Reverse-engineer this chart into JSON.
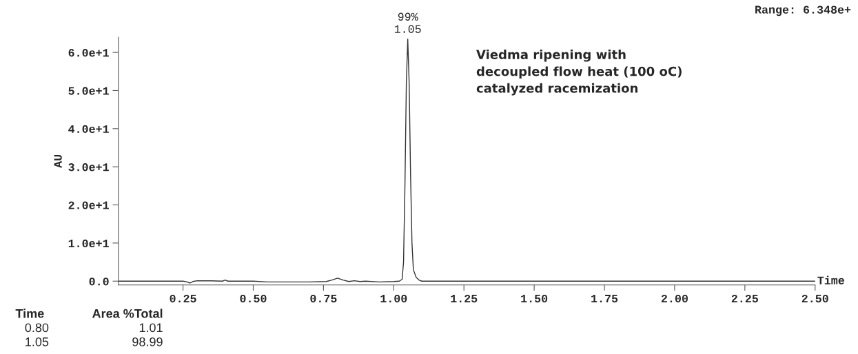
{
  "chart_data": {
    "type": "line",
    "xlabel": "Time",
    "ylabel": "AU",
    "series": [
      {
        "color": "#333333",
        "x": [
          0.02,
          0.1,
          0.2,
          0.25,
          0.265,
          0.275,
          0.285,
          0.3,
          0.35,
          0.39,
          0.4,
          0.41,
          0.5,
          0.55,
          0.6,
          0.7,
          0.76,
          0.78,
          0.8,
          0.82,
          0.84,
          0.86,
          0.88,
          0.9,
          0.95,
          1.0,
          1.02,
          1.03,
          1.035,
          1.04,
          1.045,
          1.05,
          1.055,
          1.06,
          1.065,
          1.07,
          1.08,
          1.09,
          1.1,
          1.2,
          1.5,
          2.0,
          2.5
        ],
        "values": [
          0,
          0,
          0,
          0,
          -0.2,
          -0.5,
          -0.1,
          0.1,
          0.1,
          0,
          0.3,
          0,
          0,
          -0.2,
          -0.2,
          -0.2,
          -0.1,
          0.3,
          0.8,
          0.3,
          -0.1,
          0.1,
          -0.1,
          0,
          -0.2,
          -0.1,
          0,
          0.5,
          5,
          25,
          52,
          63.5,
          52,
          28,
          10,
          3,
          1,
          0.3,
          0,
          0,
          0,
          0,
          0
        ]
      }
    ],
    "xlim": [
      0.02,
      2.5
    ],
    "ylim": [
      -1,
      64
    ],
    "xticks": [
      0.25,
      {
        "value": 0.5,
        "label": "0.50"
      },
      0.75,
      {
        "value": 1,
        "label": "1.00"
      },
      1.25,
      {
        "value": 1.5,
        "label": "1.50"
      },
      1.75,
      {
        "value": 2,
        "label": "2.00"
      },
      2.25,
      {
        "value": 2.5,
        "label": "2.50"
      }
    ],
    "yticks": [
      {
        "value": 0,
        "label": "0.0"
      },
      {
        "value": 10,
        "label": "1.0e+1"
      },
      {
        "value": 20,
        "label": "2.0e+1"
      },
      {
        "value": 30,
        "label": "3.0e+1"
      },
      {
        "value": 40,
        "label": "4.0e+1"
      },
      {
        "value": 50,
        "label": "5.0e+1"
      },
      {
        "value": 60,
        "label": "6.0e+1"
      }
    ],
    "grid": false,
    "legend": false,
    "annotations": [
      {
        "text": "99%\n1.05",
        "x": 1.05,
        "y": 63.5
      },
      "Range: 6.348e+",
      "Viedma ripening with\ndecoupled flow heat (100 oC)\ncatalyzed racemization",
      "Time",
      "Area %Total",
      "0.80",
      "1.01",
      "1.05",
      "98.99"
    ]
  }
}
